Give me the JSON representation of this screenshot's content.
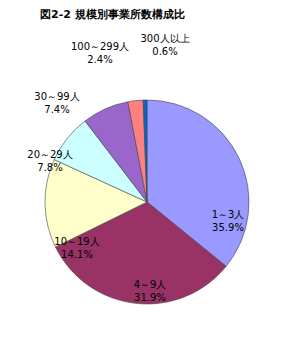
{
  "chart_data": {
    "type": "pie",
    "title": "図2-2 規模別事業所数構成比",
    "categories": [
      "1～3人",
      "4～9人",
      "10～19人",
      "20～29人",
      "30～99人",
      "100～299人",
      "300人以上"
    ],
    "values": [
      35.9,
      31.9,
      14.1,
      7.8,
      7.4,
      2.4,
      0.6
    ],
    "value_labels": [
      "35.9%",
      "31.9%",
      "14.1%",
      "7.8%",
      "7.4%",
      "2.4%",
      "0.6%"
    ],
    "colors": [
      "#9999ff",
      "#993366",
      "#ffffcc",
      "#ccffff",
      "#9966cc",
      "#ff8080",
      "#0066cc"
    ],
    "data_labels": true
  }
}
